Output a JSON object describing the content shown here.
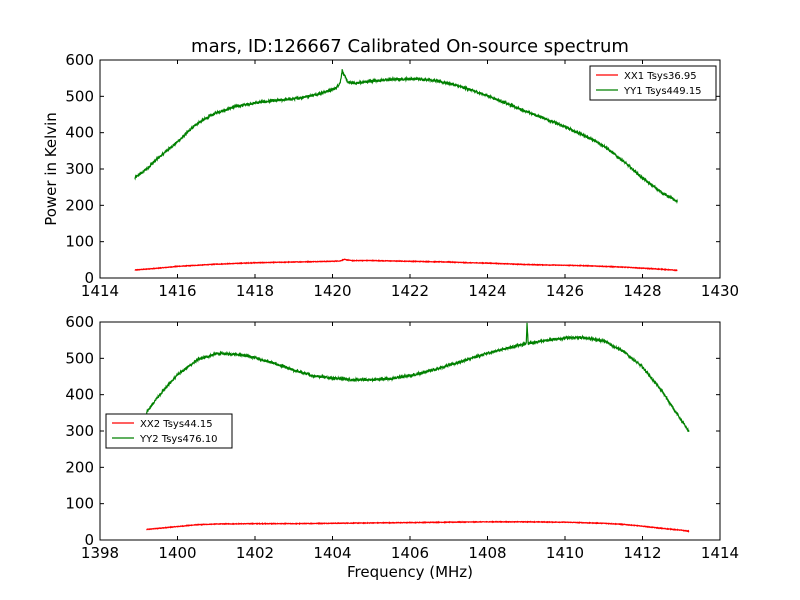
{
  "chart_data": [
    {
      "type": "line",
      "title": "mars, ID:126667 Calibrated On-source spectrum",
      "xlabel": "",
      "ylabel": "Power in Kelvin",
      "xlim": [
        1414,
        1430
      ],
      "ylim": [
        0,
        600
      ],
      "xticks": [
        1414,
        1416,
        1418,
        1420,
        1422,
        1424,
        1426,
        1428,
        1430
      ],
      "yticks": [
        0,
        100,
        200,
        300,
        400,
        500,
        600
      ],
      "legend_position": "top-right",
      "series": [
        {
          "name": "XX1 Tsys36.95",
          "color": "#ff0000",
          "x": [
            1414.9,
            1415.5,
            1416.0,
            1416.5,
            1417.0,
            1417.5,
            1418.0,
            1418.5,
            1419.0,
            1419.5,
            1420.0,
            1420.2,
            1420.3,
            1420.5,
            1421.0,
            1421.5,
            1422.0,
            1422.5,
            1423.0,
            1423.5,
            1424.0,
            1424.5,
            1425.0,
            1425.5,
            1426.0,
            1426.5,
            1427.0,
            1427.5,
            1428.0,
            1428.5,
            1428.9
          ],
          "y": [
            22,
            27,
            32,
            35,
            38,
            40,
            42,
            43,
            44,
            45,
            46,
            47,
            51,
            48,
            48,
            47,
            46,
            45,
            44,
            42,
            41,
            39,
            37,
            36,
            35,
            34,
            32,
            30,
            27,
            24,
            21
          ]
        },
        {
          "name": "YY1 Tsys449.15",
          "color": "#008000",
          "x": [
            1414.9,
            1415.2,
            1415.5,
            1416.0,
            1416.5,
            1417.0,
            1417.5,
            1418.0,
            1418.5,
            1419.0,
            1419.5,
            1420.0,
            1420.1,
            1420.2,
            1420.25,
            1420.3,
            1420.4,
            1420.6,
            1421.0,
            1421.5,
            1422.0,
            1422.5,
            1423.0,
            1423.5,
            1424.0,
            1424.5,
            1425.0,
            1425.5,
            1426.0,
            1426.5,
            1427.0,
            1427.5,
            1428.0,
            1428.5,
            1428.9
          ],
          "y": [
            275,
            300,
            330,
            375,
            425,
            455,
            472,
            482,
            488,
            493,
            503,
            518,
            524,
            538,
            572,
            558,
            538,
            536,
            542,
            546,
            548,
            546,
            536,
            520,
            502,
            480,
            458,
            438,
            416,
            392,
            364,
            322,
            275,
            235,
            210
          ]
        }
      ]
    },
    {
      "type": "line",
      "title": "",
      "xlabel": "Frequency (MHz)",
      "ylabel": "",
      "xlim": [
        1398,
        1414
      ],
      "ylim": [
        0,
        600
      ],
      "xticks": [
        1398,
        1400,
        1402,
        1404,
        1406,
        1408,
        1410,
        1412,
        1414
      ],
      "yticks": [
        0,
        100,
        200,
        300,
        400,
        500,
        600
      ],
      "legend_position": "center-left",
      "series": [
        {
          "name": "XX2 Tsys44.15",
          "color": "#ff0000",
          "x": [
            1399.2,
            1399.5,
            1400.0,
            1400.5,
            1401.0,
            1402.0,
            1403.0,
            1404.0,
            1405.0,
            1406.0,
            1407.0,
            1408.0,
            1409.0,
            1410.0,
            1411.0,
            1411.5,
            1412.0,
            1412.5,
            1413.0,
            1413.2
          ],
          "y": [
            29,
            32,
            37,
            42,
            44,
            45,
            45,
            46,
            47,
            48,
            49,
            50,
            50,
            49,
            46,
            43,
            38,
            32,
            27,
            24
          ]
        },
        {
          "name": "YY2 Tsys476.10",
          "color": "#008000",
          "x": [
            1399.2,
            1399.5,
            1400.0,
            1400.5,
            1401.0,
            1401.5,
            1402.0,
            1402.5,
            1403.0,
            1403.5,
            1404.0,
            1404.5,
            1405.0,
            1405.5,
            1406.0,
            1406.5,
            1407.0,
            1407.5,
            1408.0,
            1408.5,
            1409.0,
            1409.02,
            1409.05,
            1409.5,
            1410.0,
            1410.5,
            1411.0,
            1411.5,
            1412.0,
            1412.5,
            1413.0,
            1413.2
          ],
          "y": [
            350,
            395,
            455,
            495,
            513,
            512,
            502,
            486,
            467,
            452,
            446,
            441,
            441,
            444,
            452,
            465,
            481,
            497,
            514,
            528,
            540,
            598,
            541,
            549,
            556,
            557,
            548,
            520,
            476,
            410,
            330,
            298
          ]
        }
      ]
    }
  ]
}
